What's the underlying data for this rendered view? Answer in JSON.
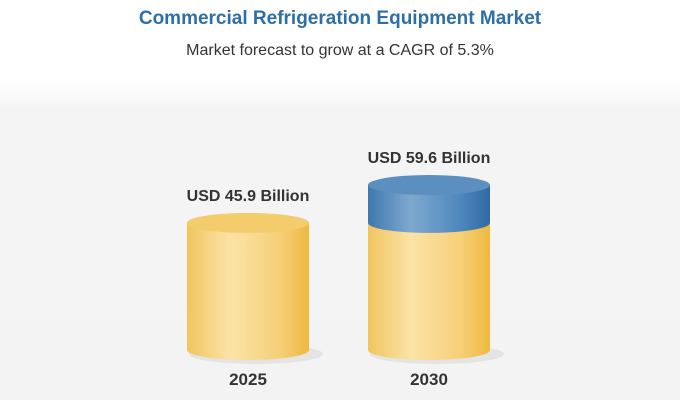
{
  "chart_data": {
    "type": "bar",
    "title": "Commercial Refrigeration Equipment Market",
    "subtitle": "Market forecast to grow at a CAGR of 5.3%",
    "categories": [
      "2025",
      "2030"
    ],
    "values": [
      45.9,
      59.6
    ],
    "data_labels": [
      "USD 45.9 Billion",
      "USD 59.6 Billion"
    ],
    "unit": "USD Billion",
    "colors": {
      "base": "#f2c45a",
      "growth": "#4a84b8",
      "title": "#2f6fa8"
    },
    "grid": false,
    "legend": "none"
  }
}
